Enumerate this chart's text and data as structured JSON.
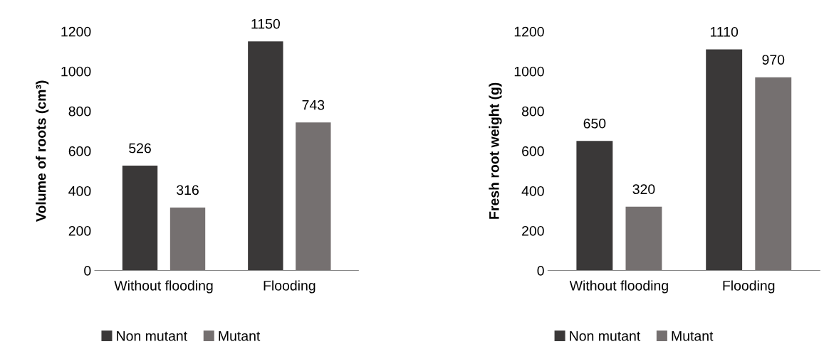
{
  "chart_data": [
    {
      "type": "bar",
      "ylabel": "Volume of roots (cm³)",
      "categories": [
        "Without flooding",
        "Flooding"
      ],
      "series": [
        {
          "name": "Non mutant",
          "color": "#3a3838",
          "values": [
            526,
            1150
          ]
        },
        {
          "name": "Mutant",
          "color": "#757070",
          "values": [
            316,
            743
          ]
        }
      ],
      "ylim": [
        0,
        1200
      ],
      "yticks": [
        0,
        200,
        400,
        600,
        800,
        1000,
        1200
      ],
      "grid": false,
      "legend": "bottom",
      "data_labels": true
    },
    {
      "type": "bar",
      "ylabel": "Fresh root weight (g)",
      "categories": [
        "Without flooding",
        "Flooding"
      ],
      "series": [
        {
          "name": "Non mutant",
          "color": "#3a3838",
          "values": [
            650,
            1110
          ]
        },
        {
          "name": "Mutant",
          "color": "#757070",
          "values": [
            320,
            970
          ]
        }
      ],
      "ylim": [
        0,
        1200
      ],
      "yticks": [
        0,
        200,
        400,
        600,
        800,
        1000,
        1200
      ],
      "grid": false,
      "legend": "bottom",
      "data_labels": true
    }
  ]
}
